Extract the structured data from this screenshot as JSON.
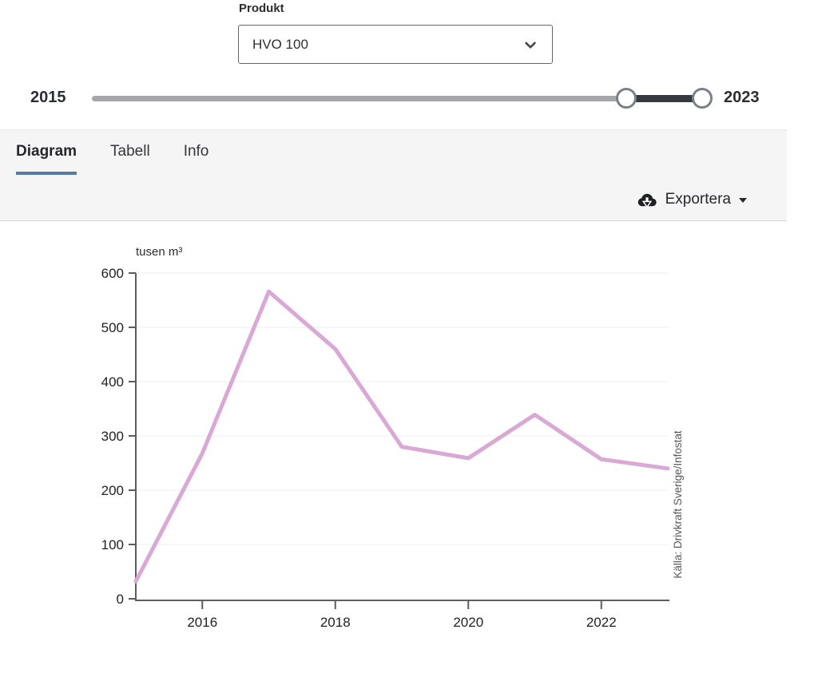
{
  "product_selector": {
    "label": "Produkt",
    "value": "HVO 100"
  },
  "range_slider": {
    "min_label": "2015",
    "max_label": "2023",
    "min": 2015,
    "max": 2023,
    "lower_value": 2022,
    "upper_value": 2023
  },
  "tabs": [
    {
      "label": "Diagram",
      "active": true
    },
    {
      "label": "Tabell",
      "active": false
    },
    {
      "label": "Info",
      "active": false
    }
  ],
  "export": {
    "label": "Exportera"
  },
  "icons": {
    "select": "chevron-down-icon",
    "export": "cloud-download-icon",
    "export_caret": "caret-down-icon"
  },
  "colors": {
    "line": "#d9a8d5",
    "tab_underline": "#567ca6",
    "slider_track": "#a7a7a9",
    "slider_selected": "#36393d",
    "panel_bg": "#f5f5f6",
    "axis": "#5b5d61",
    "gridline": "#ededee"
  },
  "chart_data": {
    "type": "line",
    "title": "",
    "ylabel": "tusen m³",
    "xlabel": "",
    "series": [
      {
        "name": "HVO 100",
        "x": [
          2015,
          2016,
          2017,
          2018,
          2019,
          2020,
          2021,
          2022,
          2023
        ],
        "values": [
          32,
          268,
          566,
          460,
          280,
          259,
          339,
          257,
          240
        ]
      }
    ],
    "xlim": [
      2015,
      2023
    ],
    "ylim": [
      0,
      600
    ],
    "y_ticks": [
      0,
      100,
      200,
      300,
      400,
      500,
      600
    ],
    "x_ticks": [
      2016,
      2018,
      2020,
      2022
    ],
    "x_tick_labels": [
      "2016",
      "2018",
      "2020",
      "2022"
    ],
    "grid": "horizontal",
    "legend": "none",
    "line_color": "#d9a8d5",
    "source": "Källa: Drivkraft Sverige/Infostat"
  }
}
